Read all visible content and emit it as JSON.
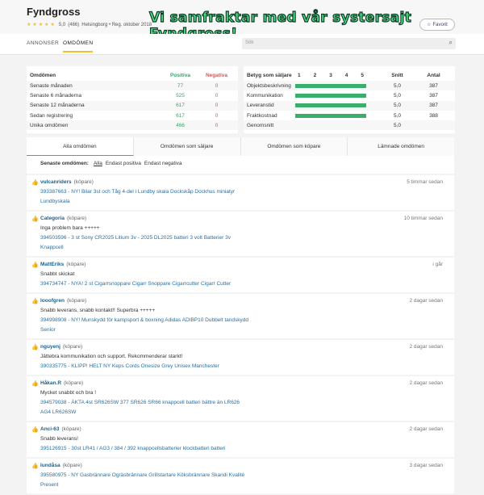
{
  "header": {
    "title": "Fyndgross",
    "rating": "5,0",
    "count": "(466)",
    "meta": "Helsingborg • Reg. oktober 2018",
    "banner": "Vi samfraktar med vår systersajt Fyndgross!",
    "favorite": "Favorit"
  },
  "nav": {
    "tabs": [
      "ANNONSER",
      "OMDÖMEN"
    ],
    "active": "OMDÖMEN",
    "search_placeholder": "Sök"
  },
  "stats": {
    "headers": [
      "Omdömen",
      "Positiva",
      "Negativa"
    ],
    "rows": [
      {
        "label": "Senaste månaden",
        "pos": "77",
        "neg": "0"
      },
      {
        "label": "Senaste 6 månaderna",
        "pos": "525",
        "neg": "0"
      },
      {
        "label": "Senaste 12 månaderna",
        "pos": "617",
        "neg": "0"
      },
      {
        "label": "Sedan registrering",
        "pos": "617",
        "neg": "0"
      },
      {
        "label": "Unika omdömen",
        "pos": "466",
        "neg": "0"
      }
    ]
  },
  "ratings": {
    "headers": [
      "Betyg som säljare",
      "Snitt",
      "Antal"
    ],
    "scale": [
      "1",
      "2",
      "3",
      "4",
      "5"
    ],
    "rows": [
      {
        "label": "Objektsbeskrivning",
        "avg": "5,0",
        "count": "387",
        "score": 5
      },
      {
        "label": "Kommunikation",
        "avg": "5,0",
        "count": "387",
        "score": 5
      },
      {
        "label": "Leveranstid",
        "avg": "5,0",
        "count": "387",
        "score": 5
      },
      {
        "label": "Fraktkostnad",
        "avg": "5,0",
        "count": "388",
        "score": 5
      }
    ],
    "overall_label": "Genomsnitt",
    "overall": "5,0",
    "bar_color": "#3bae6c"
  },
  "tabs": [
    "Alla omdömen",
    "Omdömen som säljare",
    "Omdömen som köpare",
    "Lämnade omdömen"
  ],
  "filter": {
    "label": "Senaste omdömen:",
    "options": [
      "Alla",
      "Endast positiva",
      "Endast negativa"
    ],
    "active": "Alla"
  },
  "reviews": [
    {
      "user": "vulcanriders",
      "role": "(köpare)",
      "time": "5 timmar sedan",
      "comment": "",
      "item": "393387663 - NY! Bilar 3st och Tåg 4-del i Lundby skala Dockskåp Dockhus miniatyr Lundbyskala"
    },
    {
      "user": "Categoria",
      "role": "(köpare)",
      "time": "10 timmar sedan",
      "comment": "Inga problem bara +++++",
      "item": "394503596 - 3 st Sony CR2025 Litium 3v - 2025 DL2025 batteri 3 volt Batterier 3v Knappcell"
    },
    {
      "user": "MattEriks",
      "role": "(köpare)",
      "time": "i går",
      "comment": "Snabbt skickat",
      "item": "394734747 - NYA! 2 st Cigarrsnoppare Cigarr Snoppare Cigarrcutter Cigarr Cutter"
    },
    {
      "user": "looofgren",
      "role": "(köpare)",
      "time": "2 dagar sedan",
      "comment": "Snabb leverans, snabb kontakt!! Superbra +++++",
      "item": "394998908 - NY! Munskydd för kampsport & boxning Adidas ADIBP10 Dubbelt tandskydd Senior"
    },
    {
      "user": "nguyenj",
      "role": "(köpare)",
      "time": "2 dagar sedan",
      "comment": "Jättebra kommunikation och support. Rekommenderar starkt!",
      "item": "390335775 - KLIPP! HELT NY Keps Cords Onesize Grey Unisex Manchester"
    },
    {
      "user": "Håkan.R",
      "role": "(köpare)",
      "time": "2 dagar sedan",
      "comment": "Mycket snabbt och bra !",
      "item": "394579038 - ÄKTA 4st SR626SW 377 SR626 SR66 knappcell batteri bättre än LR626 AG4 LR626SW"
    },
    {
      "user": "Anci-63",
      "role": "(köpare)",
      "time": "2 dagar sedan",
      "comment": "Snabb leverans!",
      "item": "395126915 - 30st LR41 / AG3 / 384 / 392 knappcellsbatterier klockbatteri batteri"
    },
    {
      "user": "lundåsa",
      "role": "(köpare)",
      "time": "3 dagar sedan",
      "comment": "",
      "item": "395580975 - NY Gasbrännare Ogräsbrännare Grillstartare Köksbrännare Skandi Kvalité Present"
    }
  ]
}
